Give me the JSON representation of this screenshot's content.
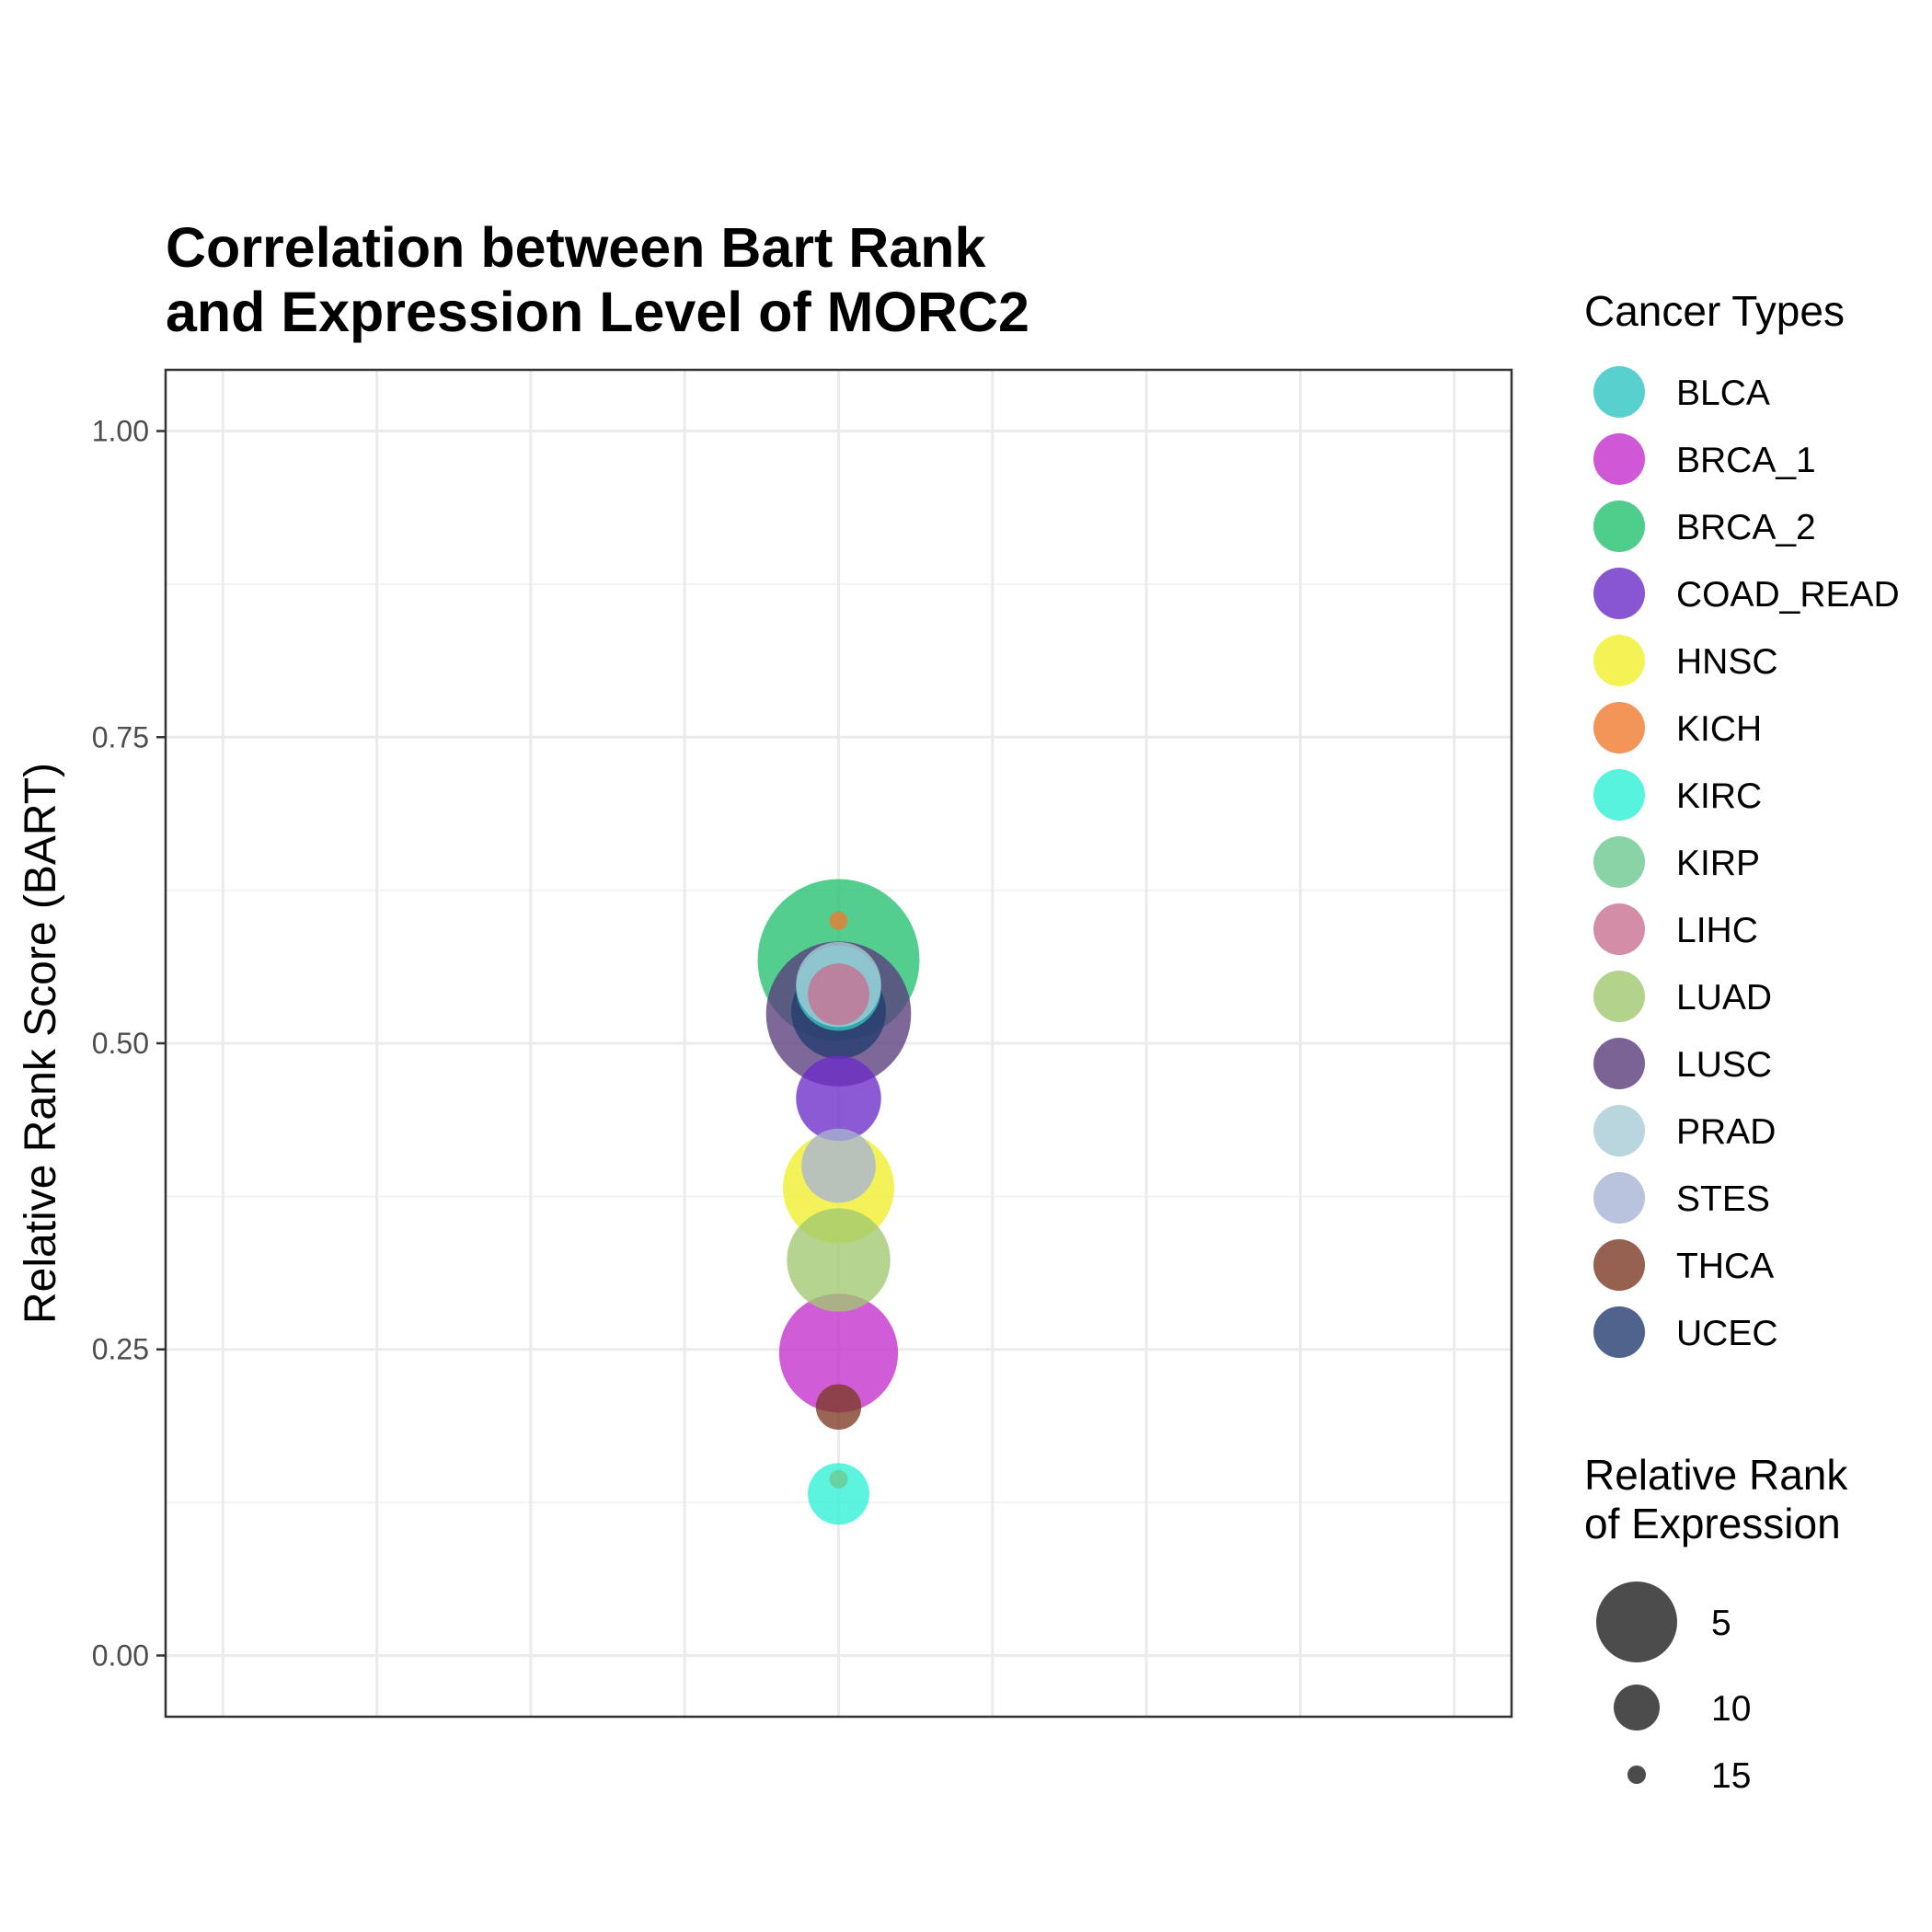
{
  "chart_data": {
    "type": "scatter",
    "title": [
      "Correlation between Bart Rank",
      "and Expression Level of MORC2"
    ],
    "xlabel": "",
    "ylabel": "Relative Rank Score (BART)",
    "ylim": [
      -0.05,
      1.05
    ],
    "y_ticks": [
      "0.00",
      "0.25",
      "0.50",
      "0.75",
      "1.00"
    ],
    "y_tick_values": [
      0,
      0.25,
      0.5,
      0.75,
      1.0
    ],
    "grid": true,
    "color_legend": {
      "title": "Cancer Types",
      "position": "right"
    },
    "size_legend": {
      "title": [
        "Relative Rank",
        "of Expression"
      ],
      "position": "right",
      "entries": [
        {
          "label": "5",
          "value": 5
        },
        {
          "label": "10",
          "value": 10
        },
        {
          "label": "15",
          "value": 15
        }
      ]
    },
    "series": [
      {
        "name": "BLCA",
        "color": "#2EC4C0",
        "x": 0,
        "y": 0.545,
        "expression_rank": 12
      },
      {
        "name": "BRCA_1",
        "color": "#C42ECC",
        "x": 0,
        "y": 0.247,
        "expression_rank": 8
      },
      {
        "name": "BRCA_2",
        "color": "#22C06E",
        "x": 0,
        "y": 0.568,
        "expression_rank": 1
      },
      {
        "name": "COAD_READ",
        "color": "#6A2CC8",
        "x": 0,
        "y": 0.455,
        "expression_rank": 12
      },
      {
        "name": "HNSC",
        "color": "#F0F02A",
        "x": 0,
        "y": 0.382,
        "expression_rank": 9
      },
      {
        "name": "KICH",
        "color": "#F07A2E",
        "x": 0,
        "y": 0.6,
        "expression_rank": 16
      },
      {
        "name": "KIRC",
        "color": "#2EF0D6",
        "x": 0,
        "y": 0.132,
        "expression_rank": 14
      },
      {
        "name": "KIRP",
        "color": "#6CC890",
        "x": 0,
        "y": 0.144,
        "expression_rank": 16
      },
      {
        "name": "LIHC",
        "color": "#C87090",
        "x": 0,
        "y": 0.54,
        "expression_rank": 14
      },
      {
        "name": "LUAD",
        "color": "#A0C870",
        "x": 0,
        "y": 0.323,
        "expression_rank": 10
      },
      {
        "name": "LUSC",
        "color": "#5A3C7C",
        "x": 0,
        "y": 0.524,
        "expression_rank": 4
      },
      {
        "name": "PRAD",
        "color": "#A8CCD6",
        "x": 0,
        "y": 0.548,
        "expression_rank": 12
      },
      {
        "name": "STES",
        "color": "#A8B4D6",
        "x": 0,
        "y": 0.4,
        "expression_rank": 13
      },
      {
        "name": "THCA",
        "color": "#7C3A24",
        "x": 0,
        "y": 0.203,
        "expression_rank": 15
      },
      {
        "name": "UCEC",
        "color": "#243C70",
        "x": 0,
        "y": 0.526,
        "expression_rank": 11
      }
    ]
  }
}
